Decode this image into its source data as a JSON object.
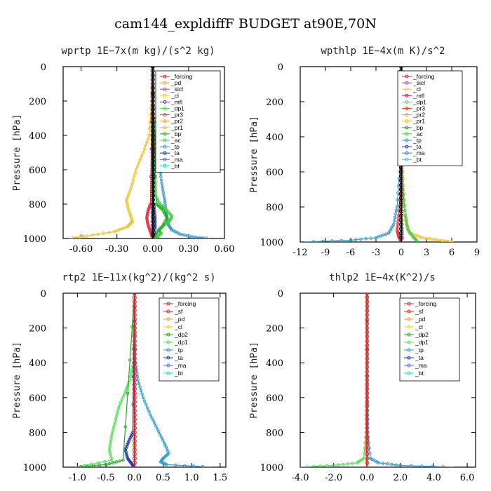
{
  "figure_title": "cam144_expldiffF  BUDGET at90E,70N",
  "chart_data": [
    {
      "type": "line",
      "title": "wprtp   1E−7x(m kg)/(s^2 kg)",
      "ylabel": "Pressure [hPa]",
      "xlim": [
        -0.75,
        0.6
      ],
      "ylim": [
        1000,
        0
      ],
      "xticks": [
        -0.6,
        -0.3,
        0.0,
        0.3,
        0.6
      ],
      "xtick_labels": [
        "-0.60",
        "-0.30",
        "0.00",
        "0.30",
        "0.60"
      ],
      "yticks": [
        0,
        200,
        400,
        600,
        800,
        1000
      ],
      "ytick_labels": [
        "0",
        "200",
        "400",
        "600",
        "800",
        "1000"
      ],
      "legend": [
        "_forcing",
        "_pd",
        "_sicl",
        "_cl",
        "_mfl",
        "_dp1",
        "_pr3",
        "_pr2",
        "_pr1",
        "_bp",
        "_ac",
        "_tp",
        "_ta",
        "_ma",
        "_bt"
      ],
      "series": [
        {
          "name": "_pr1",
          "color": "#f0c020",
          "x": [
            0,
            -0.01,
            -0.03,
            -0.08,
            -0.14,
            -0.18,
            -0.22,
            -0.2,
            -0.17,
            -0.21,
            -0.32,
            -0.55,
            -0.7
          ],
          "y": [
            0,
            200,
            400,
            500,
            600,
            700,
            780,
            840,
            900,
            930,
            960,
            985,
            1000
          ]
        },
        {
          "name": "_tp",
          "color": "#3399cc",
          "x": [
            0,
            0.01,
            0.03,
            0.06,
            0.08,
            0.1,
            0.11,
            0.12,
            0.13,
            0.16,
            0.23,
            0.33,
            0.48
          ],
          "y": [
            0,
            300,
            500,
            600,
            700,
            780,
            840,
            880,
            920,
            950,
            975,
            990,
            1000
          ]
        },
        {
          "name": "_ac",
          "color": "#44cc44",
          "x": [
            0,
            0.02,
            0.06,
            0.11,
            0.16,
            0.14,
            0.08,
            0.05,
            0.07,
            0.04,
            0
          ],
          "y": [
            0,
            750,
            800,
            830,
            870,
            900,
            930,
            950,
            970,
            990,
            1000
          ]
        },
        {
          "name": "_bp",
          "color": "#22aa22",
          "x": [
            0,
            0.03,
            0.08,
            0.12,
            0.08,
            0.03,
            0
          ],
          "y": [
            0,
            800,
            830,
            880,
            930,
            970,
            1000
          ]
        },
        {
          "name": "_dp1",
          "color": "#dd3344",
          "x": [
            0,
            -0.02,
            -0.04,
            -0.05,
            -0.04,
            -0.02,
            0
          ],
          "y": [
            0,
            800,
            840,
            880,
            920,
            960,
            1000
          ]
        },
        {
          "name": "_ta",
          "color": "#2233aa",
          "x": [
            0,
            0.01,
            0.02,
            0.02,
            0
          ],
          "y": [
            0,
            800,
            880,
            940,
            1000
          ]
        },
        {
          "name": "_forcing",
          "color": "#000000",
          "x": [
            0,
            0
          ],
          "y": [
            0,
            1000
          ]
        }
      ]
    },
    {
      "type": "line",
      "title": "wpthlp   1E−4x(m K)/s^2",
      "ylabel": "Pressure [hPa]",
      "xlim": [
        -12,
        9
      ],
      "ylim": [
        1000,
        0
      ],
      "xticks": [
        -12,
        -9,
        -6,
        -3,
        0,
        3,
        6,
        9
      ],
      "xtick_labels": [
        "-12",
        "-9",
        "-6",
        "-3",
        "0",
        "3",
        "6",
        "9"
      ],
      "yticks": [
        0,
        200,
        400,
        600,
        800,
        1000
      ],
      "ytick_labels": [
        "0",
        "200",
        "400",
        "600",
        "800",
        "1000"
      ],
      "legend": [
        "_forcing",
        "_sicl",
        "_cl",
        "_mfl",
        "_dp1",
        "_pr3",
        "_pr2",
        "_pr1",
        "_bp",
        "_ac",
        "_tp",
        "_ta",
        "_ma",
        "_bt"
      ],
      "series": [
        {
          "name": "_tp",
          "color": "#3399cc",
          "x": [
            0,
            -0.2,
            -0.5,
            -0.9,
            -1.5,
            -3.0,
            -6.0,
            -11.5
          ],
          "y": [
            0,
            600,
            800,
            900,
            950,
            975,
            990,
            1000
          ]
        },
        {
          "name": "_pr1",
          "color": "#f0c020",
          "x": [
            0,
            0.2,
            0.4,
            0.6,
            1.0,
            2.5,
            4.5,
            6.2
          ],
          "y": [
            0,
            600,
            800,
            900,
            950,
            975,
            990,
            1000
          ]
        },
        {
          "name": "_ac",
          "color": "#44cc44",
          "x": [
            0,
            0.2,
            0.5,
            0.8,
            1.4,
            2.0
          ],
          "y": [
            0,
            700,
            850,
            930,
            970,
            1000
          ]
        },
        {
          "name": "_dp1",
          "color": "#dd3344",
          "x": [
            0,
            -0.1,
            -0.3,
            -0.5,
            -0.3,
            0
          ],
          "y": [
            0,
            700,
            850,
            930,
            970,
            1000
          ]
        },
        {
          "name": "_pd",
          "color": "#b090e0",
          "x": [
            0,
            0,
            0.1,
            0.2
          ],
          "y": [
            0,
            600,
            900,
            1000
          ]
        },
        {
          "name": "_forcing",
          "color": "#000000",
          "x": [
            0,
            0
          ],
          "y": [
            0,
            1000
          ]
        }
      ]
    },
    {
      "type": "line",
      "title": "rtp2   1E−11x(kg^2)/(kg^2 s)",
      "ylabel": "Pressure [hPa]",
      "xlim": [
        -1.25,
        1.6
      ],
      "ylim": [
        1000,
        0
      ],
      "xticks": [
        -1.0,
        -0.5,
        0.0,
        0.5,
        1.0,
        1.5
      ],
      "xtick_labels": [
        "-1.0",
        "-0.5",
        "0.0",
        "0.5",
        "1.0",
        "1.5"
      ],
      "yticks": [
        0,
        200,
        400,
        600,
        800,
        1000
      ],
      "ytick_labels": [
        "0",
        "200",
        "400",
        "600",
        "800",
        "1000"
      ],
      "legend": [
        "_forcing",
        "_sf",
        "_pd",
        "_cl",
        "_dp2",
        "_dp1",
        "_tp",
        "_ta",
        "_ma",
        "_bt"
      ],
      "series": [
        {
          "name": "_dp1",
          "color": "#55dd55",
          "x": [
            0,
            -0.02,
            -0.08,
            -0.18,
            -0.28,
            -0.34,
            -0.4,
            -0.44,
            -0.4,
            -1.0
          ],
          "y": [
            0,
            400,
            500,
            580,
            660,
            740,
            820,
            900,
            960,
            1000
          ]
        },
        {
          "name": "_dp2",
          "color": "#22aa22",
          "x": [
            0,
            -0.2,
            -0.5,
            -1.05
          ],
          "y": [
            0,
            960,
            985,
            1000
          ]
        },
        {
          "name": "_tp",
          "color": "#3399cc",
          "x": [
            0,
            0.02,
            0.06,
            0.15,
            0.28,
            0.4,
            0.52,
            0.6,
            0.5,
            0.46,
            0.56,
            1.35
          ],
          "y": [
            0,
            400,
            500,
            600,
            700,
            780,
            860,
            920,
            950,
            970,
            985,
            1000
          ]
        },
        {
          "name": "_ta",
          "color": "#2233aa",
          "x": [
            0,
            -0.03,
            -0.1,
            -0.16,
            -0.12,
            -0.05,
            0
          ],
          "y": [
            0,
            800,
            850,
            900,
            950,
            980,
            1000
          ]
        },
        {
          "name": "_forcing",
          "color": "#dd2222",
          "x": [
            0,
            0
          ],
          "y": [
            0,
            1000
          ]
        }
      ]
    },
    {
      "type": "line",
      "title": "thlp2   1E−4x(K^2)/s",
      "ylabel": "Pressure [hPa]",
      "xlim": [
        -4.0,
        6.5
      ],
      "ylim": [
        1000,
        0
      ],
      "xticks": [
        -4.0,
        -2.0,
        0.0,
        2.0,
        4.0,
        6.0
      ],
      "xtick_labels": [
        "-4.0",
        "-2.0",
        "0.0",
        "2.0",
        "4.0",
        "6.0"
      ],
      "yticks": [
        0,
        200,
        400,
        600,
        800,
        1000
      ],
      "ytick_labels": [
        "0",
        "200",
        "400",
        "600",
        "800",
        "1000"
      ],
      "legend": [
        "_forcing",
        "_sf",
        "_pd",
        "_cl",
        "_dp2",
        "_dp1",
        "_tp",
        "_ta",
        "_ma",
        "_bt"
      ],
      "series": [
        {
          "name": "_dp1",
          "color": "#55dd55",
          "x": [
            0,
            -0.05,
            -0.2,
            -0.6,
            -2.0,
            -4.0
          ],
          "y": [
            0,
            800,
            950,
            975,
            990,
            1000
          ]
        },
        {
          "name": "_tp",
          "color": "#3399cc",
          "x": [
            0,
            0.05,
            0.2,
            0.7,
            2.0,
            5.2
          ],
          "y": [
            0,
            800,
            950,
            975,
            990,
            1000
          ]
        },
        {
          "name": "_forcing",
          "color": "#dd2222",
          "x": [
            0,
            0
          ],
          "y": [
            0,
            1000
          ]
        }
      ]
    }
  ]
}
